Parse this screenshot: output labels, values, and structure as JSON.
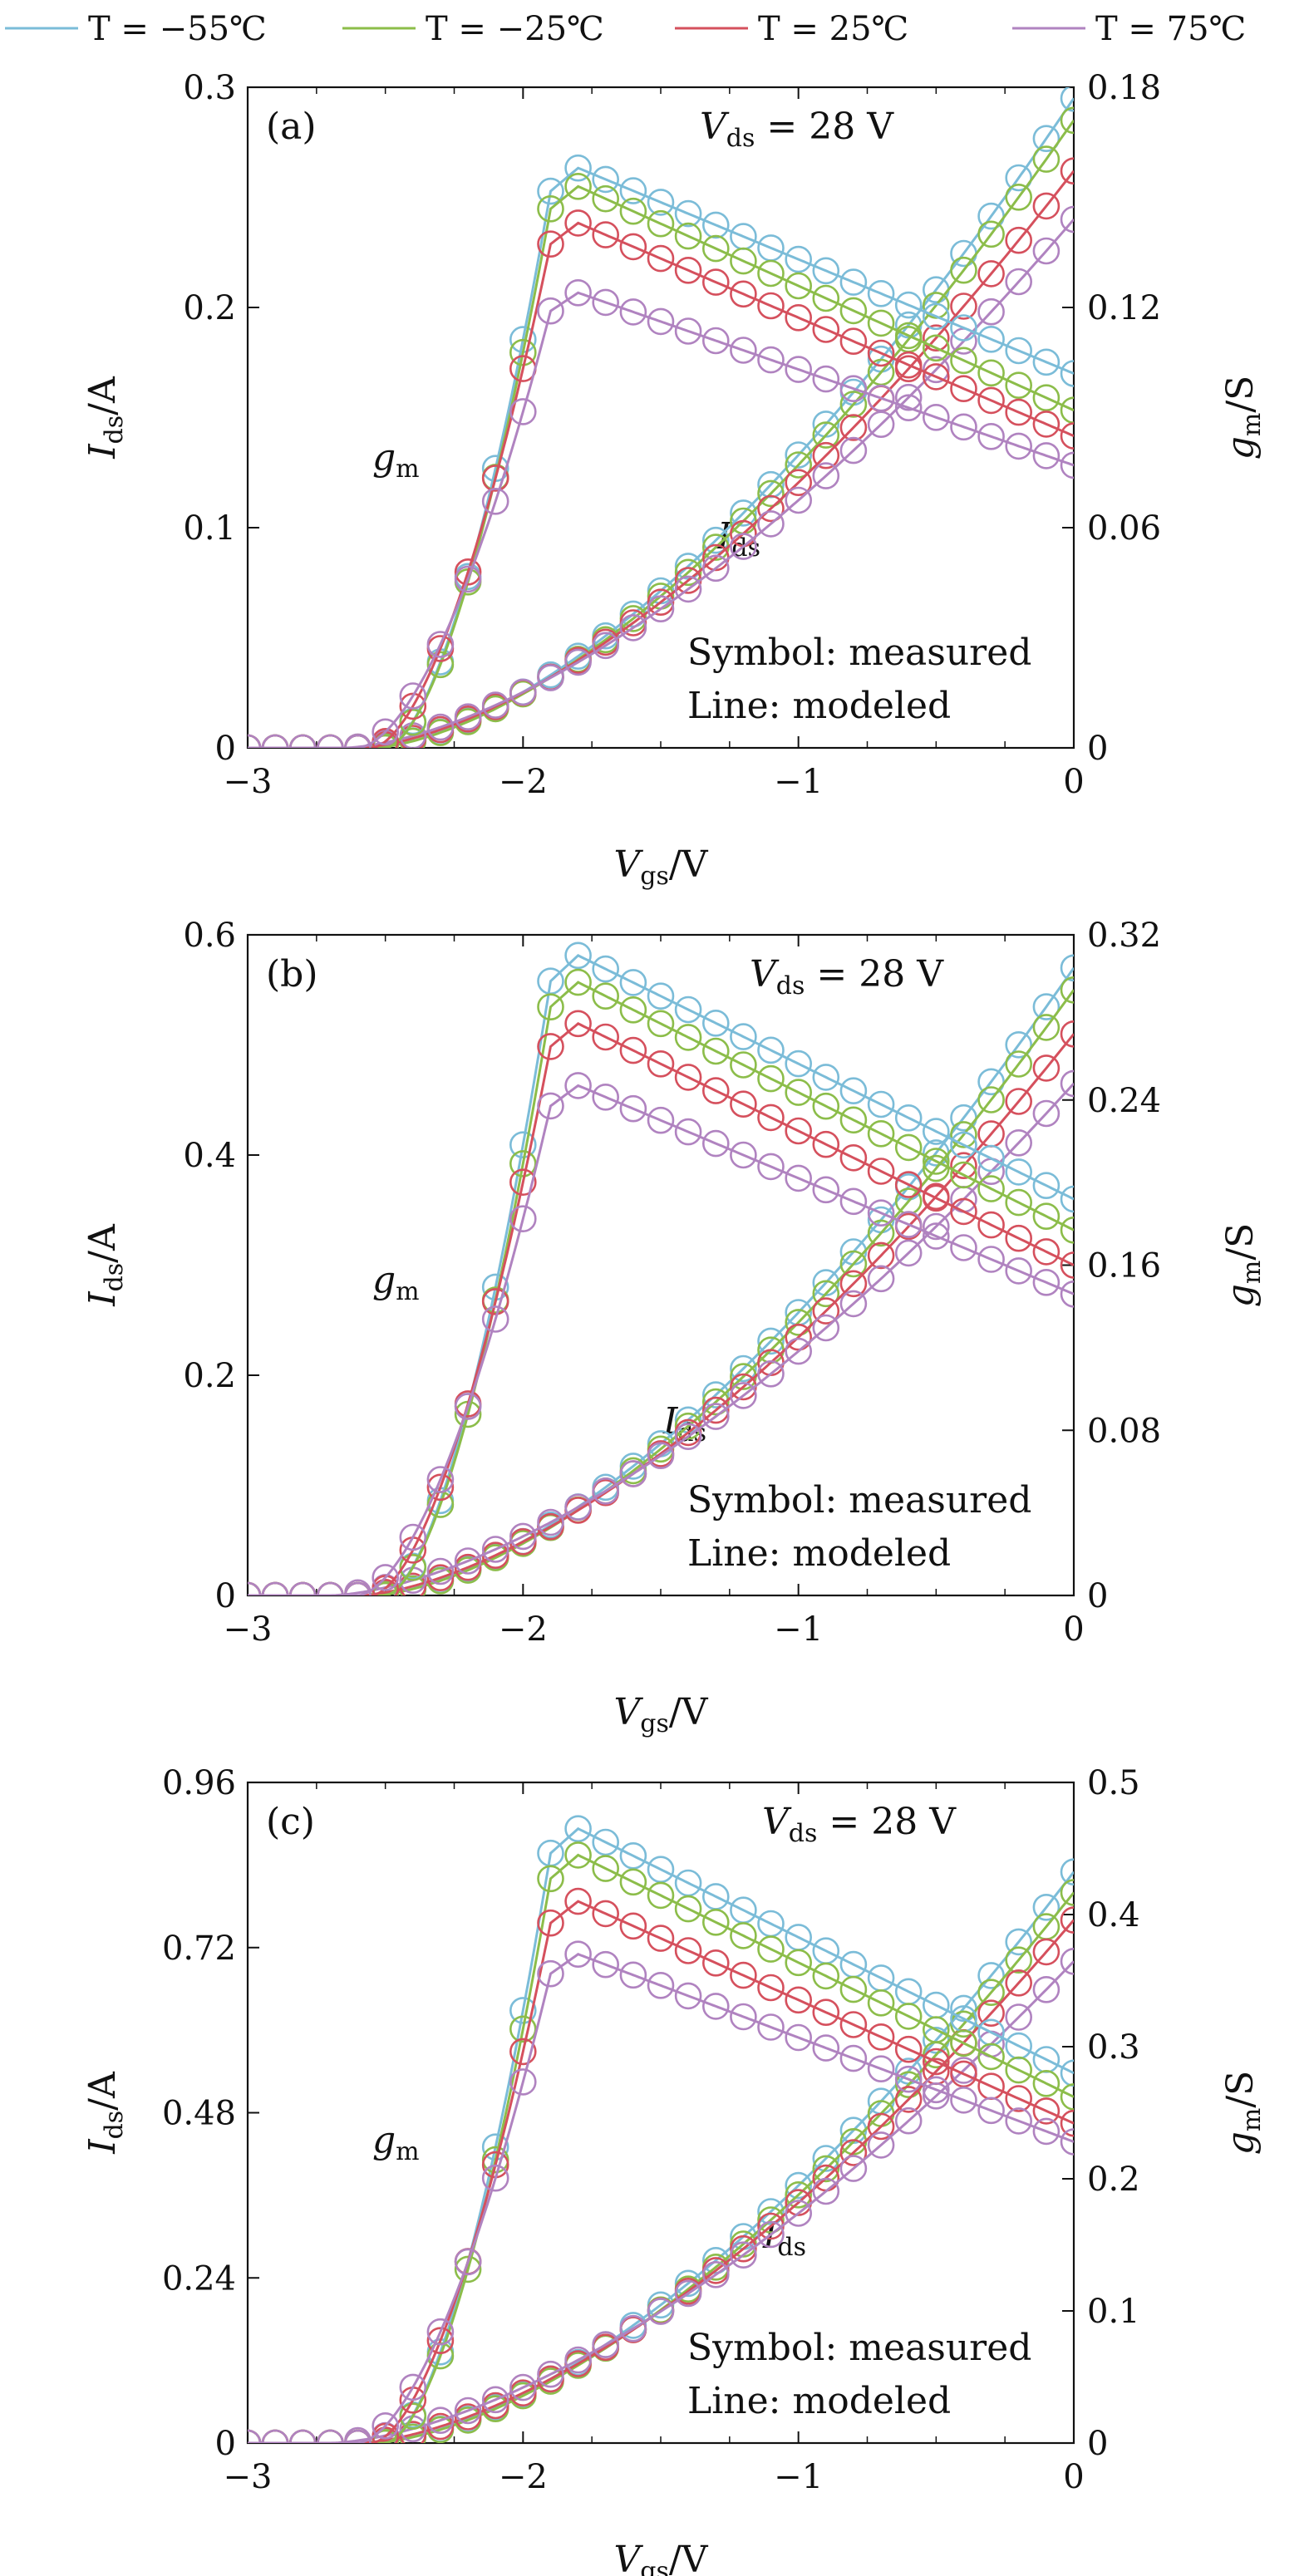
{
  "legend": [
    {
      "label": "T = −55℃",
      "color": "#7bbcd8"
    },
    {
      "label": "T = −25℃",
      "color": "#8cbd4a"
    },
    {
      "label": "T = 25℃",
      "color": "#d5505d"
    },
    {
      "label": "T = 75℃",
      "color": "#b083c0"
    }
  ],
  "chart_data": [
    {
      "type": "line",
      "panel_label": "(a)",
      "condition": "V_ds = 28 V",
      "xlabel": "V_gs/V",
      "ylabel_left": "I_ds/A",
      "ylabel_right": "g_m/S",
      "x_ticks": [
        "−3",
        "−2",
        "−1",
        "0"
      ],
      "y_left_ticks": [
        "0",
        "0.1",
        "0.2",
        "0.3"
      ],
      "y_right_ticks": [
        "0",
        "0.06",
        "0.12",
        "0.18"
      ],
      "xlim": [
        -3,
        0
      ],
      "ylim_left": [
        0,
        0.3
      ],
      "ylim_right": [
        0,
        0.18
      ],
      "annotations": {
        "gm": "g_m",
        "ids": "I_ds",
        "symbol": "Symbol: measured",
        "line": "Line: modeled"
      },
      "ids_series": [
        {
          "name": "T = −55℃",
          "onset": -2.55,
          "end": 0.295
        },
        {
          "name": "T = −25℃",
          "onset": -2.55,
          "end": 0.285
        },
        {
          "name": "T = 25℃",
          "onset": -2.6,
          "end": 0.262
        },
        {
          "name": "T = 75℃",
          "onset": -2.65,
          "end": 0.24
        }
      ],
      "gm_series": [
        {
          "name": "T = −55℃",
          "onset": -2.5,
          "xpeak": -1.8,
          "peak": 0.158,
          "end": 0.102
        },
        {
          "name": "T = −25℃",
          "onset": -2.5,
          "xpeak": -1.8,
          "peak": 0.153,
          "end": 0.092
        },
        {
          "name": "T = 25℃",
          "onset": -2.55,
          "xpeak": -1.8,
          "peak": 0.143,
          "end": 0.085
        },
        {
          "name": "T = 75℃",
          "onset": -2.6,
          "xpeak": -1.8,
          "peak": 0.124,
          "end": 0.077
        }
      ]
    },
    {
      "type": "line",
      "panel_label": "(b)",
      "condition": "V_ds = 28 V",
      "xlabel": "V_gs/V",
      "ylabel_left": "I_ds/A",
      "ylabel_right": "g_m/S",
      "x_ticks": [
        "−3",
        "−2",
        "−1",
        "0"
      ],
      "y_left_ticks": [
        "0",
        "0.2",
        "0.4",
        "0.6"
      ],
      "y_right_ticks": [
        "0",
        "0.08",
        "0.16",
        "0.24",
        "0.32"
      ],
      "xlim": [
        -3,
        0
      ],
      "ylim_left": [
        0,
        0.6
      ],
      "ylim_right": [
        0,
        0.32
      ],
      "annotations": {
        "gm": "g_m",
        "ids": "I_ds",
        "symbol": "Symbol: measured",
        "line": "Line: modeled"
      },
      "ids_series": [
        {
          "name": "T = −55℃",
          "onset": -2.55,
          "end": 0.57
        },
        {
          "name": "T = −25℃",
          "onset": -2.55,
          "end": 0.55
        },
        {
          "name": "T = 25℃",
          "onset": -2.6,
          "end": 0.51
        },
        {
          "name": "T = 75℃",
          "onset": -2.7,
          "end": 0.465
        }
      ],
      "gm_series": [
        {
          "name": "T = −55℃",
          "onset": -2.5,
          "xpeak": -1.8,
          "peak": 0.31,
          "end": 0.192
        },
        {
          "name": "T = −25℃",
          "onset": -2.5,
          "xpeak": -1.8,
          "peak": 0.297,
          "end": 0.177
        },
        {
          "name": "T = 25℃",
          "onset": -2.55,
          "xpeak": -1.8,
          "peak": 0.277,
          "end": 0.16
        },
        {
          "name": "T = 75℃",
          "onset": -2.6,
          "xpeak": -1.8,
          "peak": 0.247,
          "end": 0.146
        }
      ]
    },
    {
      "type": "line",
      "panel_label": "(c)",
      "condition": "V_ds = 28 V",
      "xlabel": "V_gs/V",
      "ylabel_left": "I_ds/A",
      "ylabel_right": "g_m/S",
      "x_ticks": [
        "−3",
        "−2",
        "−1",
        "0"
      ],
      "y_left_ticks": [
        "0",
        "0.24",
        "0.48",
        "0.72",
        "0.96"
      ],
      "y_right_ticks": [
        "0",
        "0.1",
        "0.2",
        "0.3",
        "0.4",
        "0.5"
      ],
      "xlim": [
        -3,
        0
      ],
      "ylim_left": [
        0,
        0.96
      ],
      "ylim_right": [
        0,
        0.5
      ],
      "annotations": {
        "gm": "g_m",
        "ids": "I_ds",
        "symbol": "Symbol: measured",
        "line": "Line: modeled"
      },
      "ids_series": [
        {
          "name": "T = −55℃",
          "onset": -2.55,
          "end": 0.83
        },
        {
          "name": "T = −25℃",
          "onset": -2.55,
          "end": 0.8
        },
        {
          "name": "T = 25℃",
          "onset": -2.6,
          "end": 0.76
        },
        {
          "name": "T = 75℃",
          "onset": -2.7,
          "end": 0.7
        }
      ],
      "gm_series": [
        {
          "name": "T = −55℃",
          "onset": -2.5,
          "xpeak": -1.8,
          "peak": 0.465,
          "end": 0.28
        },
        {
          "name": "T = −25℃",
          "onset": -2.5,
          "xpeak": -1.8,
          "peak": 0.445,
          "end": 0.262
        },
        {
          "name": "T = 25℃",
          "onset": -2.55,
          "xpeak": -1.8,
          "peak": 0.41,
          "end": 0.242
        },
        {
          "name": "T = 75℃",
          "onset": -2.6,
          "xpeak": -1.8,
          "peak": 0.37,
          "end": 0.228
        }
      ]
    }
  ]
}
